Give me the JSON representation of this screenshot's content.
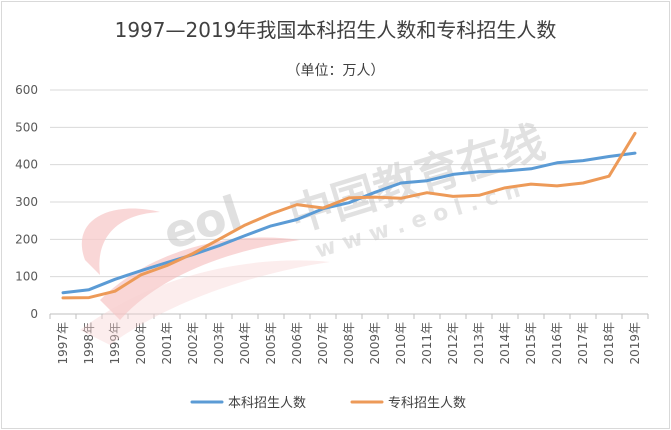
{
  "chart_data": {
    "type": "line",
    "title": "1997—2019年我国本科招生人数和专科招生人数",
    "subtitle": "（单位：万人）",
    "categories": [
      "1997年",
      "1998年",
      "1999年",
      "2000年",
      "2001年",
      "2002年",
      "2003年",
      "2004年",
      "2005年",
      "2006年",
      "2007年",
      "2008年",
      "2009年",
      "2010年",
      "2011年",
      "2012年",
      "2013年",
      "2014年",
      "2015年",
      "2016年",
      "2017年",
      "2018年",
      "2019年"
    ],
    "yticks": [
      "0",
      "100",
      "200",
      "300",
      "400",
      "500",
      "600"
    ],
    "ylim": [
      0,
      600
    ],
    "grid": true,
    "legend_position": "bottom",
    "series": [
      {
        "name": "本科招生人数",
        "color": "#5b9bd5",
        "values": [
          57,
          65,
          93,
          116,
          138,
          159,
          183,
          210,
          236,
          253,
          282,
          298,
          326,
          351,
          357,
          374,
          381,
          383,
          389,
          405,
          411,
          422,
          431
        ]
      },
      {
        "name": "专科招生人数",
        "color": "#ed9a58",
        "values": [
          43,
          44,
          61,
          105,
          130,
          162,
          200,
          238,
          268,
          293,
          284,
          311,
          313,
          310,
          325,
          315,
          318,
          338,
          348,
          343,
          351,
          369,
          484
        ]
      }
    ]
  },
  "watermark": {
    "brand_text": "中国教育在线",
    "site_text": "w w w . e o l . c n",
    "logo_text": "eol"
  }
}
